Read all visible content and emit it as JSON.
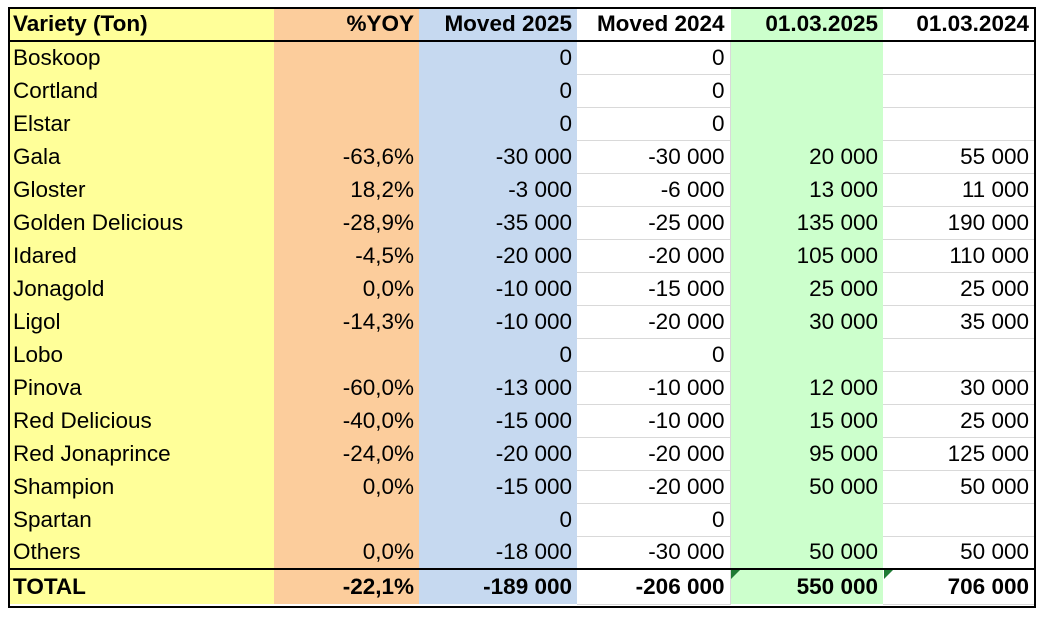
{
  "table": {
    "headers": [
      "Variety (Ton)",
      "%YOY",
      "Moved 2025",
      "Moved 2024",
      "01.03.2025",
      "01.03.2024"
    ],
    "rows": [
      [
        "Boskoop",
        "",
        "0",
        "0",
        "",
        ""
      ],
      [
        "Cortland",
        "",
        "0",
        "0",
        "",
        ""
      ],
      [
        "Elstar",
        "",
        "0",
        "0",
        "",
        ""
      ],
      [
        "Gala",
        "-63,6%",
        "-30 000",
        "-30 000",
        "20 000",
        "55 000"
      ],
      [
        "Gloster",
        "18,2%",
        "-3 000",
        "-6 000",
        "13 000",
        "11 000"
      ],
      [
        "Golden Delicious",
        "-28,9%",
        "-35 000",
        "-25 000",
        "135 000",
        "190 000"
      ],
      [
        "Idared",
        "-4,5%",
        "-20 000",
        "-20 000",
        "105 000",
        "110 000"
      ],
      [
        "Jonagold",
        "0,0%",
        "-10 000",
        "-15 000",
        "25 000",
        "25 000"
      ],
      [
        "Ligol",
        "-14,3%",
        "-10 000",
        "-20 000",
        "30 000",
        "35 000"
      ],
      [
        "Lobo",
        "",
        "0",
        "0",
        "",
        ""
      ],
      [
        "Pinova",
        "-60,0%",
        "-13 000",
        "-10 000",
        "12 000",
        "30 000"
      ],
      [
        "Red Delicious",
        "-40,0%",
        "-15 000",
        "-10 000",
        "15 000",
        "25 000"
      ],
      [
        "Red Jonaprince",
        "-24,0%",
        "-20 000",
        "-20 000",
        "95 000",
        "125 000"
      ],
      [
        "Shampion",
        "0,0%",
        "-15 000",
        "-20 000",
        "50 000",
        "50 000"
      ],
      [
        "Spartan",
        "",
        "0",
        "0",
        "",
        ""
      ],
      [
        "Others",
        "0,0%",
        "-18 000",
        "-30 000",
        "50 000",
        "50 000"
      ]
    ],
    "total": [
      "TOTAL",
      "-22,1%",
      "-189 000",
      "-206 000",
      "550 000",
      "706 000"
    ]
  },
  "colors": {
    "variety_column": "#ffff99",
    "yoy_column": "#fccd9c",
    "moved_2025_column": "#c6d9f0",
    "stock_2025_column": "#ccffcc",
    "cell_note_marker": "#1e7b34"
  }
}
